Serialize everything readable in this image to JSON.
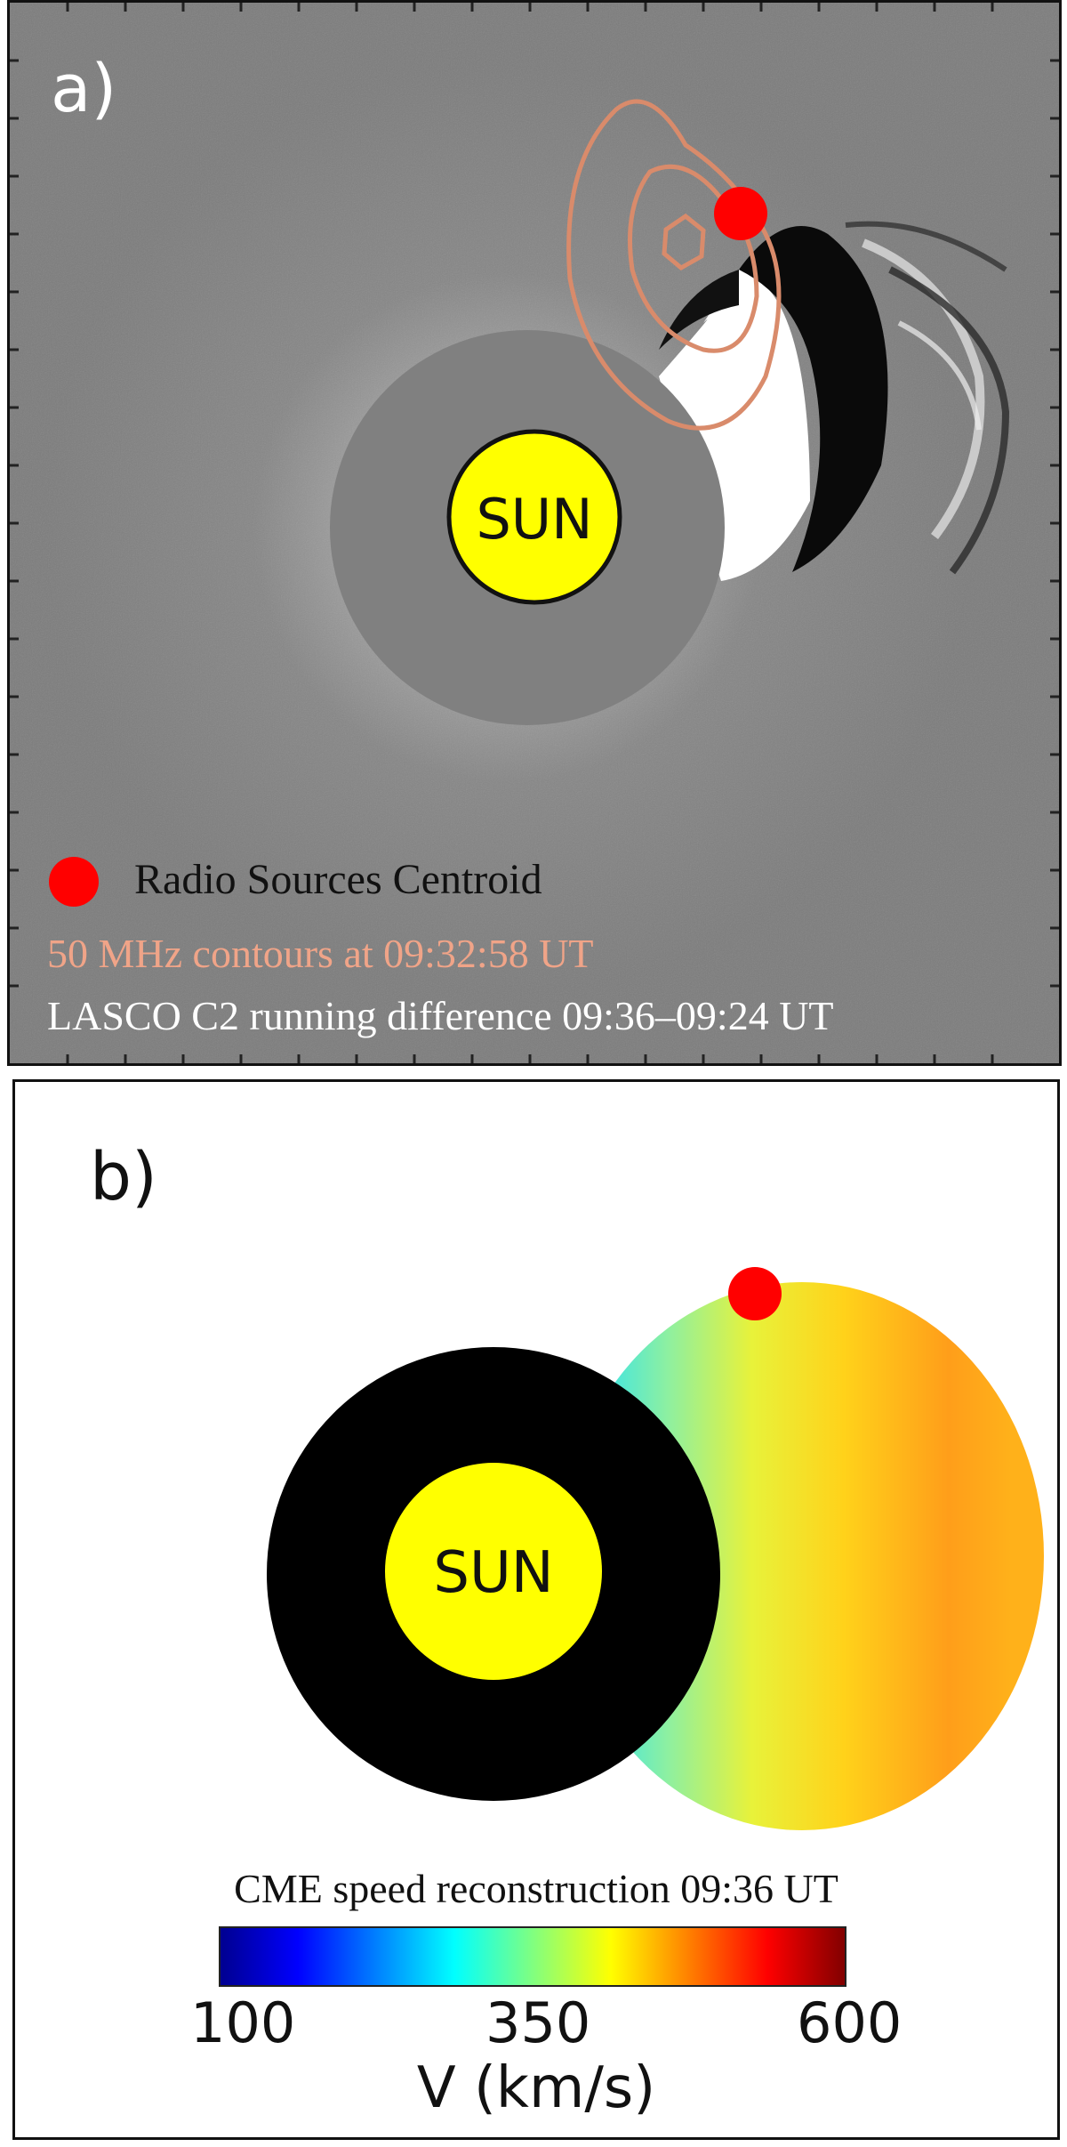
{
  "panel_a": {
    "label": "a)",
    "sun_label": "SUN",
    "legend": {
      "centroid": "Radio Sources Centroid",
      "contours": "50 MHz contours at 09:32:58 UT",
      "lasco": "LASCO C2 running difference 09:36–09:24 UT"
    },
    "colors": {
      "background": "#7f7f7f",
      "occulter": "#808080",
      "sun": "#ffff00",
      "centroid": "#ff0000",
      "contour": "#d98b6b"
    }
  },
  "panel_b": {
    "label": "b)",
    "sun_label": "SUN",
    "colors": {
      "occulter": "#000000",
      "sun": "#ffff00",
      "centroid": "#ff0000"
    }
  },
  "colorbar": {
    "title": "CME speed reconstruction 09:36 UT",
    "ticks": [
      "100",
      "350",
      "600"
    ],
    "range": [
      100,
      600
    ],
    "axis_label": "V (km/s)",
    "colormap": "jet"
  }
}
